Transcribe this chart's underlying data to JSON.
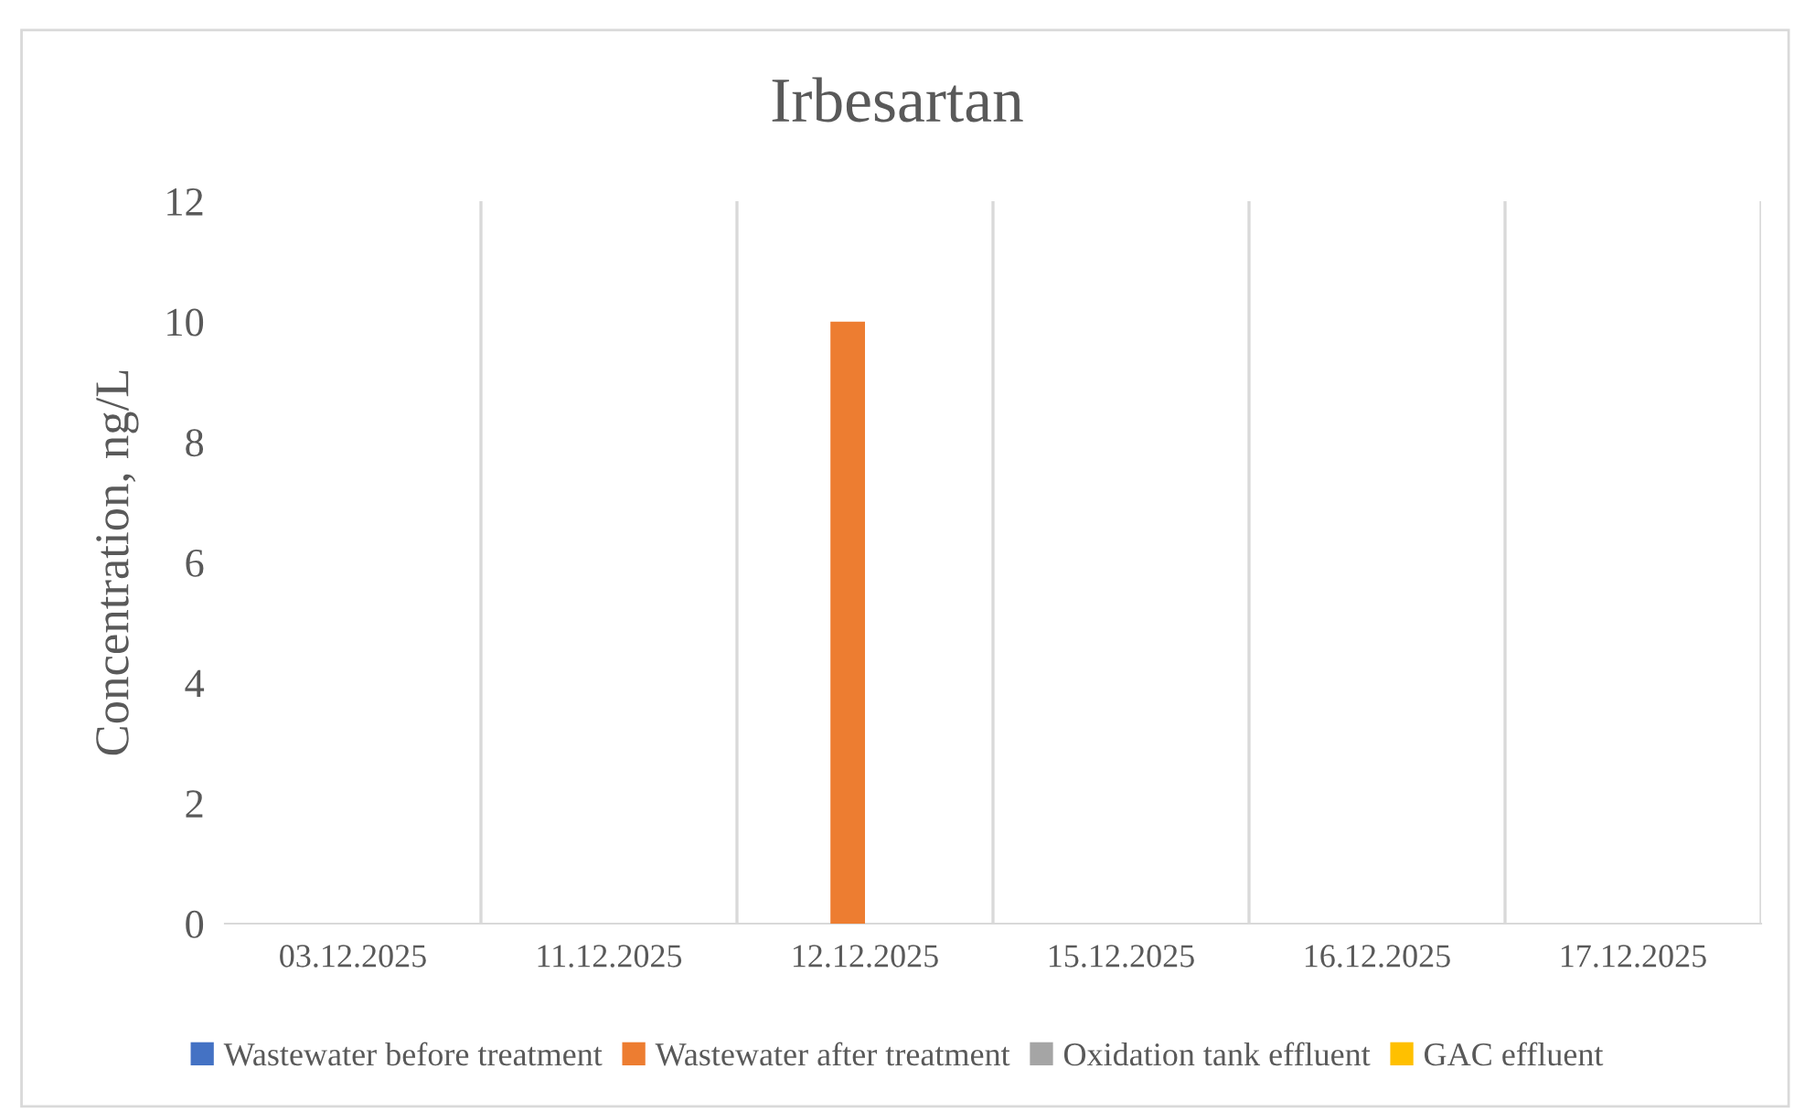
{
  "chart_data": {
    "type": "bar",
    "title": "Irbesartan",
    "ylabel": "Concentration, ng/L",
    "categories": [
      "03.12.2025",
      "11.12.2025",
      "12.12.2025",
      "15.12.2025",
      "16.12.2025",
      "17.12.2025"
    ],
    "series": [
      {
        "name": "Wastewater before treatment",
        "color": "#4472c4",
        "values": [
          null,
          null,
          null,
          null,
          null,
          null
        ]
      },
      {
        "name": "Wastewater after treatment",
        "color": "#ed7d31",
        "values": [
          null,
          null,
          10,
          null,
          null,
          null
        ]
      },
      {
        "name": "Oxidation tank effluent",
        "color": "#a5a5a5",
        "values": [
          null,
          null,
          null,
          null,
          null,
          null
        ]
      },
      {
        "name": "GAC effluent",
        "color": "#ffc000",
        "values": [
          null,
          null,
          null,
          null,
          null,
          null
        ]
      }
    ],
    "ylim": [
      0,
      12
    ],
    "yticks": [
      0,
      2,
      4,
      6,
      8,
      10,
      12
    ],
    "grid": "x",
    "legend": "bottom"
  }
}
